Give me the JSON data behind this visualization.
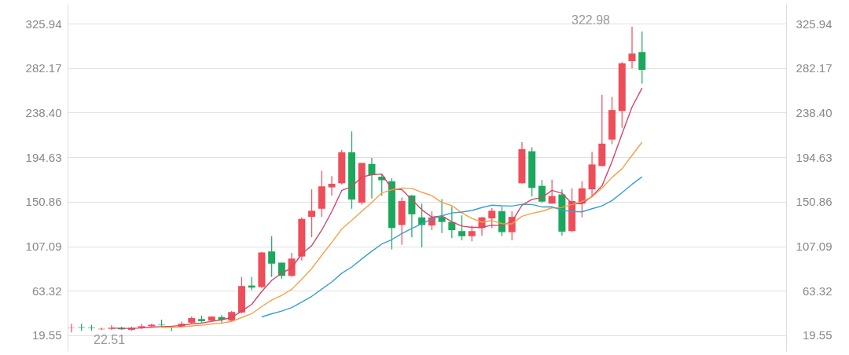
{
  "chart_data": {
    "type": "candlestick",
    "categories": [
      null,
      null,
      null,
      null,
      null,
      null,
      null,
      null,
      null,
      null,
      null,
      null,
      null,
      null,
      null,
      null,
      null,
      null,
      null,
      null,
      null,
      null,
      null,
      null,
      null,
      null,
      null,
      null,
      null,
      null,
      null,
      null,
      null,
      null,
      null,
      null,
      null,
      null,
      null,
      null,
      null,
      null,
      null,
      null,
      null,
      null,
      null,
      null,
      null,
      null,
      null,
      null,
      null,
      null,
      null,
      null,
      null,
      null,
      null,
      null,
      null,
      null,
      null,
      null,
      null,
      null,
      null,
      null,
      null,
      null,
      null,
      null
    ],
    "ohlc": [
      [
        27,
        31,
        22.51,
        27.3
      ],
      [
        27.5,
        31,
        24,
        27
      ],
      [
        27,
        30,
        24,
        26.5
      ],
      [
        25.5,
        27,
        25,
        26
      ],
      [
        26,
        29.5,
        25,
        27
      ],
      [
        27,
        28,
        25,
        25.5
      ],
      [
        25,
        28,
        24,
        27
      ],
      [
        27,
        31,
        26,
        28.5
      ],
      [
        28.5,
        31,
        28,
        30
      ],
      [
        30,
        35,
        27.5,
        29.5
      ],
      [
        27.6,
        28,
        23.5,
        27.3
      ],
      [
        28,
        33,
        27,
        31
      ],
      [
        32,
        38,
        31,
        36.5
      ],
      [
        35.5,
        39,
        32,
        33.5
      ],
      [
        34,
        38.5,
        33,
        38
      ],
      [
        37.5,
        39.5,
        31,
        35
      ],
      [
        34,
        43.5,
        33,
        42.5
      ],
      [
        42,
        77,
        41,
        68
      ],
      [
        68.5,
        77,
        64,
        66.5
      ],
      [
        67,
        101.5,
        66,
        101
      ],
      [
        102,
        117,
        77,
        90
      ],
      [
        91,
        91,
        75,
        78
      ],
      [
        78,
        100.5,
        77,
        95
      ],
      [
        97,
        135.5,
        93,
        134
      ],
      [
        136,
        163,
        116,
        142
      ],
      [
        144,
        181.5,
        136,
        166
      ],
      [
        165,
        176,
        157,
        168.5
      ],
      [
        169,
        202,
        168,
        199.5
      ],
      [
        199.5,
        220,
        144,
        153
      ],
      [
        150,
        189,
        148,
        189
      ],
      [
        188,
        194,
        154,
        177
      ],
      [
        175.5,
        178,
        157,
        172
      ],
      [
        171,
        174,
        104,
        125
      ],
      [
        128,
        155,
        108.6,
        151.5
      ],
      [
        157,
        157.5,
        116,
        138.5
      ],
      [
        135.5,
        149,
        106,
        128
      ],
      [
        127.5,
        141.5,
        123,
        135.5
      ],
      [
        136,
        153.5,
        120,
        131
      ],
      [
        131,
        146,
        115,
        123
      ],
      [
        122,
        137.5,
        113,
        117
      ],
      [
        117,
        127.5,
        112,
        122
      ],
      [
        125,
        136,
        117.5,
        135.5
      ],
      [
        134.5,
        144.5,
        125,
        142
      ],
      [
        141.5,
        146,
        117,
        121
      ],
      [
        121,
        141.5,
        113,
        136
      ],
      [
        169,
        209.5,
        169,
        202.5
      ],
      [
        200.5,
        204.5,
        156,
        164.5
      ],
      [
        166.5,
        172.5,
        150,
        151
      ],
      [
        149,
        172.5,
        149,
        156.5
      ],
      [
        158,
        163,
        117.5,
        121.5
      ],
      [
        122,
        164,
        121,
        151.5
      ],
      [
        149,
        171,
        135.5,
        164
      ],
      [
        163,
        200,
        156,
        187.5
      ],
      [
        186,
        256,
        185.5,
        208
      ],
      [
        212,
        254,
        207.5,
        241
      ],
      [
        240,
        288,
        223.5,
        287
      ],
      [
        289,
        322.98,
        282,
        296.5
      ],
      [
        298,
        318,
        267,
        280.5
      ],
      null,
      null,
      null,
      null,
      null,
      null,
      null,
      null,
      null,
      null,
      null,
      null,
      null,
      null
    ],
    "colors": [
      "#ee4d5a",
      "#1ba85d",
      "#1ba85d",
      "#ee4d5a",
      "#ee4d5a",
      "#1ba85d",
      "#ee4d5a",
      "#ee4d5a",
      "#ee4d5a",
      "#1ba85d",
      "#1ba85d",
      "#ee4d5a",
      "#ee4d5a",
      "#1ba85d",
      "#ee4d5a",
      "#1ba85d",
      "#ee4d5a",
      "#ee4d5a",
      "#1ba85d",
      "#ee4d5a",
      "#1ba85d",
      "#1ba85d",
      "#ee4d5a",
      "#ee4d5a",
      "#ee4d5a",
      "#ee4d5a",
      "#ee4d5a",
      "#ee4d5a",
      "#1ba85d",
      "#ee4d5a",
      "#1ba85d",
      "#1ba85d",
      "#1ba85d",
      "#ee4d5a",
      "#1ba85d",
      "#1ba85d",
      "#ee4d5a",
      "#1ba85d",
      "#1ba85d",
      "#1ba85d",
      "#ee4d5a",
      "#ee4d5a",
      "#ee4d5a",
      "#1ba85d",
      "#ee4d5a",
      "#ee4d5a",
      "#1ba85d",
      "#1ba85d",
      "#ee4d5a",
      "#1ba85d",
      "#ee4d5a",
      "#ee4d5a",
      "#ee4d5a",
      "#ee4d5a",
      "#ee4d5a",
      "#ee4d5a",
      "#ee4d5a",
      "#1ba85d",
      null,
      null,
      null,
      null,
      null,
      null,
      null,
      null,
      null,
      null,
      null,
      null,
      null,
      null
    ],
    "series": [
      {
        "type": "line",
        "color": "#d4456a",
        "values": [
          null,
          null,
          null,
          null,
          26.8,
          26.4,
          26.4,
          26.8,
          27.6,
          28.1,
          28.5,
          29.3,
          30.9,
          31.6,
          33.3,
          34.8,
          37.1,
          43.4,
          50,
          62.6,
          73.6,
          80.7,
          86.1,
          99.6,
          107.8,
          123,
          141.1,
          162,
          165.8,
          175.2,
          177.4,
          178.1,
          163.2,
          162.9,
          152.8,
          143,
          135.7,
          136.9,
          131.2,
          126.9,
          125.7,
          125.7,
          127.9,
          127.5,
          131.3,
          147.4,
          153.2,
          155,
          162.1,
          159.2,
          149,
          148.9,
          156.2,
          166.5,
          190.4,
          217.5,
          244,
          262.6,
          null,
          null,
          null,
          null,
          null,
          null,
          null,
          null,
          null,
          null,
          null,
          null,
          null,
          null
        ]
      },
      {
        "type": "line",
        "color": "#f4a146",
        "values": [
          null,
          null,
          null,
          null,
          null,
          null,
          null,
          null,
          null,
          27.4,
          27.4,
          27.8,
          28.8,
          29.6,
          30.7,
          31.6,
          33.2,
          37.1,
          40.8,
          47.9,
          54.2,
          58.9,
          64.8,
          74.8,
          85.2,
          98.3,
          110.9,
          124.1,
          132.7,
          141.5,
          150.2,
          159.6,
          162.6,
          164.4,
          164,
          160.2,
          156.9,
          150.1,
          147.1,
          139.9,
          134.4,
          130.7,
          132.4,
          129.4,
          129.1,
          136.6,
          139.5,
          141.5,
          144.8,
          145.3,
          148.2,
          151.1,
          155.6,
          164.3,
          174.8,
          183.3,
          196.5,
          209.4,
          null,
          null,
          null,
          null,
          null,
          null,
          null,
          null,
          null,
          null,
          null,
          null,
          null,
          null
        ]
      },
      {
        "type": "line",
        "color": "#3a9fd2",
        "values": [
          null,
          null,
          null,
          null,
          null,
          null,
          null,
          null,
          null,
          null,
          null,
          null,
          null,
          null,
          null,
          null,
          null,
          null,
          null,
          37.7,
          40.8,
          43.4,
          46.8,
          52.2,
          57.9,
          65,
          72,
          80.6,
          86.7,
          94.7,
          102.2,
          109.3,
          113.7,
          119.6,
          124.6,
          129.3,
          133.9,
          137.1,
          139.9,
          140.7,
          142.3,
          145.2,
          147.5,
          146.9,
          146.6,
          148.4,
          148.2,
          145.8,
          145.9,
          142.6,
          141.3,
          140.9,
          144,
          146.8,
          152,
          159.9,
          168,
          175.4,
          null,
          null,
          null,
          null,
          null,
          null,
          null,
          null,
          null,
          null,
          null,
          null,
          null,
          null
        ]
      }
    ],
    "ylim": [
      4.1,
      345.3
    ],
    "yticks": [
      19.55,
      63.32,
      107.09,
      150.86,
      194.63,
      {
        "value": 238.4,
        "label": "238.40"
      },
      282.17,
      325.94
    ],
    "y2lim": [
      4.1,
      345.3
    ],
    "y2ticks": [
      19.55,
      63.32,
      107.09,
      150.86,
      194.63,
      {
        "value": 238.4,
        "label": "238.40"
      },
      282.17,
      325.94
    ],
    "annotations": [
      "322.98",
      "22.51"
    ],
    "grid": true
  }
}
